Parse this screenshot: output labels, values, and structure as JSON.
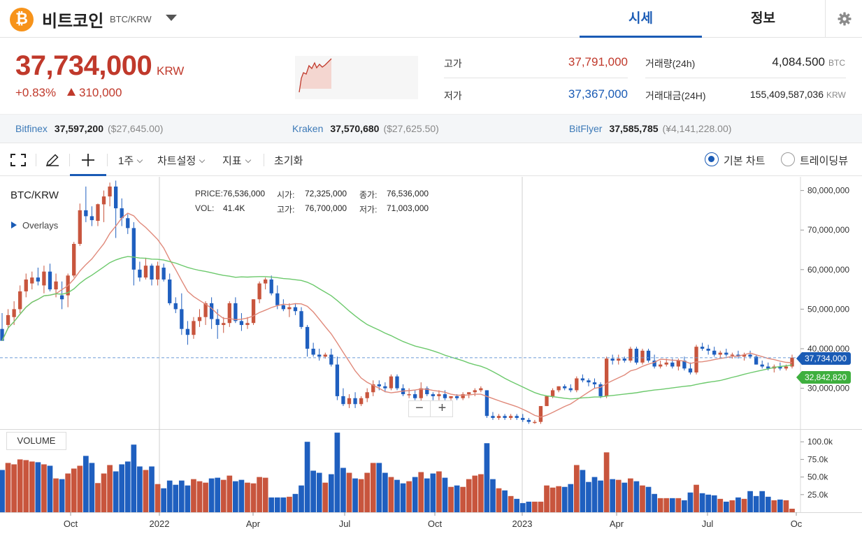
{
  "header": {
    "coin_symbol": "₿",
    "coin_name": "비트코인",
    "pair": "BTC/KRW",
    "tabs": [
      {
        "label": "시세",
        "active": true
      },
      {
        "label": "정보",
        "active": false
      }
    ],
    "settings_icon": "gear-icon"
  },
  "summary": {
    "price": "37,734,000",
    "price_unit": "KRW",
    "change_rate": "+0.83%",
    "change_amount": "310,000",
    "high_label": "고가",
    "high_value": "37,791,000",
    "low_label": "저가",
    "low_value": "37,367,000",
    "volume_label": "거래량(24h)",
    "volume_value": "4,084.500",
    "volume_unit": "BTC",
    "turnover_label": "거래대금(24H)",
    "turnover_value": "155,409,587,036",
    "turnover_unit": "KRW"
  },
  "exchanges": [
    {
      "name": "Bitfinex",
      "price": "37,597,200",
      "ref": "($27,645.00)"
    },
    {
      "name": "Kraken",
      "price": "37,570,680",
      "ref": "($27,625.50)"
    },
    {
      "name": "BitFlyer",
      "price": "37,585,785",
      "ref": "(¥4,141,228.00)"
    }
  ],
  "toolbar": {
    "fullscreen_icon": "fullscreen-icon",
    "pencil_icon": "pencil-icon",
    "crosshair_icon": "crosshair-icon",
    "interval": "1주",
    "settings": "차트설정",
    "indicators": "지표",
    "reset": "초기화",
    "chart_modes": [
      {
        "label": "기본 차트",
        "selected": true
      },
      {
        "label": "트레이딩뷰",
        "selected": false
      }
    ]
  },
  "chart_panel": {
    "pair_label": "BTC/KRW",
    "overlays_label": "Overlays",
    "ohlc": [
      {
        "k": "PRICE:",
        "v": "76,536,000"
      },
      {
        "k": "시가:",
        "v": "72,325,000"
      },
      {
        "k": "종가:",
        "v": "76,536,000"
      },
      {
        "k": "VOL:",
        "v": "41.4K"
      },
      {
        "k": "고가:",
        "v": "76,700,000"
      },
      {
        "k": "저가:",
        "v": "71,003,000"
      }
    ],
    "zoom_out": "−",
    "zoom_in": "+",
    "volume_label": "VOLUME",
    "current_price_tag": "37,734,000",
    "ma_tag": "32,842,820"
  },
  "chart_data": {
    "type": "candlestick",
    "interval": "1 week",
    "y_ticks": [
      30000000,
      40000000,
      50000000,
      60000000,
      70000000,
      80000000
    ],
    "y_tick_labels": [
      "30,000,000",
      "40,000,000",
      "50,000,000",
      "60,000,000",
      "70,000,000",
      "80,000,000"
    ],
    "volume_ticks": [
      "25.0k",
      "50.0k",
      "75.0k",
      "100.0k"
    ],
    "x_tick_labels": [
      "Oct",
      "2022",
      "Apr",
      "Jul",
      "Oct",
      "2023",
      "Apr",
      "Jul",
      "Oc"
    ],
    "colors": {
      "up": "#c8553d",
      "down": "#1f5fbf",
      "ma_fast": "#e0897a",
      "ma_slow": "#6cc96c"
    },
    "current_price": 37734000,
    "ma_slow_last": 32842820,
    "candles": [
      {
        "o": 45000000,
        "h": 49000000,
        "l": 42500000,
        "c": 42000000,
        "v": 60000
      },
      {
        "o": 46000000,
        "h": 50000000,
        "l": 45000000,
        "c": 48500000,
        "v": 70000
      },
      {
        "o": 48000000,
        "h": 52000000,
        "l": 46000000,
        "c": 50000000,
        "v": 68000
      },
      {
        "o": 50000000,
        "h": 56000000,
        "l": 49000000,
        "c": 54500000,
        "v": 75000
      },
      {
        "o": 54500000,
        "h": 59000000,
        "l": 53000000,
        "c": 57500000,
        "v": 74000
      },
      {
        "o": 56500000,
        "h": 59500000,
        "l": 55000000,
        "c": 58000000,
        "v": 72000
      },
      {
        "o": 58000000,
        "h": 60500000,
        "l": 56000000,
        "c": 57000000,
        "v": 71000
      },
      {
        "o": 56000000,
        "h": 61000000,
        "l": 54000000,
        "c": 59500000,
        "v": 68000
      },
      {
        "o": 59500000,
        "h": 61500000,
        "l": 54500000,
        "c": 55000000,
        "v": 66000
      },
      {
        "o": 55000000,
        "h": 59000000,
        "l": 53000000,
        "c": 57000000,
        "v": 48000
      },
      {
        "o": 53500000,
        "h": 57000000,
        "l": 50000000,
        "c": 52500000,
        "v": 47000
      },
      {
        "o": 53500000,
        "h": 59000000,
        "l": 50500000,
        "c": 58500000,
        "v": 55000
      },
      {
        "o": 58500000,
        "h": 67000000,
        "l": 58000000,
        "c": 66500000,
        "v": 62000
      },
      {
        "o": 66500000,
        "h": 76700000,
        "l": 66000000,
        "c": 75000000,
        "v": 66000
      },
      {
        "o": 75000000,
        "h": 81000000,
        "l": 72000000,
        "c": 73500000,
        "v": 80000
      },
      {
        "o": 73500000,
        "h": 76000000,
        "l": 71000000,
        "c": 72500000,
        "v": 70000
      },
      {
        "o": 72325000,
        "h": 76700000,
        "l": 71003000,
        "c": 76536000,
        "v": 41400
      },
      {
        "o": 76500000,
        "h": 80000000,
        "l": 72000000,
        "c": 78500000,
        "v": 55000
      },
      {
        "o": 78500000,
        "h": 82000000,
        "l": 76000000,
        "c": 81000000,
        "v": 67000
      },
      {
        "o": 81000000,
        "h": 82500000,
        "l": 68000000,
        "c": 75500000,
        "v": 58000
      },
      {
        "o": 75500000,
        "h": 78000000,
        "l": 71000000,
        "c": 73000000,
        "v": 68000
      },
      {
        "o": 73000000,
        "h": 74000000,
        "l": 69000000,
        "c": 70500000,
        "v": 72000
      },
      {
        "o": 70500000,
        "h": 72000000,
        "l": 56000000,
        "c": 60000000,
        "v": 96000
      },
      {
        "o": 60000000,
        "h": 62000000,
        "l": 57000000,
        "c": 58000000,
        "v": 65000
      },
      {
        "o": 58000000,
        "h": 63000000,
        "l": 57500000,
        "c": 61000000,
        "v": 60000
      },
      {
        "o": 61000000,
        "h": 61500000,
        "l": 56000000,
        "c": 57500000,
        "v": 65000
      },
      {
        "o": 57500000,
        "h": 62000000,
        "l": 56000000,
        "c": 61000000,
        "v": 40000
      },
      {
        "o": 60500000,
        "h": 61500000,
        "l": 57000000,
        "c": 57500000,
        "v": 34000
      },
      {
        "o": 57500000,
        "h": 59000000,
        "l": 51000000,
        "c": 51500000,
        "v": 45000
      },
      {
        "o": 51500000,
        "h": 53000000,
        "l": 49000000,
        "c": 50000000,
        "v": 39000
      },
      {
        "o": 50000000,
        "h": 54000000,
        "l": 43500000,
        "c": 45000000,
        "v": 45000
      },
      {
        "o": 45000000,
        "h": 47000000,
        "l": 41000000,
        "c": 43500000,
        "v": 38000
      },
      {
        "o": 43500000,
        "h": 48000000,
        "l": 42500000,
        "c": 47000000,
        "v": 47000
      },
      {
        "o": 47000000,
        "h": 50000000,
        "l": 45500000,
        "c": 48000000,
        "v": 44000
      },
      {
        "o": 48000000,
        "h": 52000000,
        "l": 46000000,
        "c": 51500000,
        "v": 42000
      },
      {
        "o": 51500000,
        "h": 53000000,
        "l": 45000000,
        "c": 47500000,
        "v": 48000
      },
      {
        "o": 47500000,
        "h": 50000000,
        "l": 42500000,
        "c": 46000000,
        "v": 49000
      },
      {
        "o": 46000000,
        "h": 48000000,
        "l": 44000000,
        "c": 46500000,
        "v": 46000
      },
      {
        "o": 46500000,
        "h": 52000000,
        "l": 45500000,
        "c": 51500000,
        "v": 52000
      },
      {
        "o": 51500000,
        "h": 53000000,
        "l": 46500000,
        "c": 47000000,
        "v": 44000
      },
      {
        "o": 47000000,
        "h": 49000000,
        "l": 44500000,
        "c": 46000000,
        "v": 46000
      },
      {
        "o": 46000000,
        "h": 48000000,
        "l": 45000000,
        "c": 46500000,
        "v": 42000
      },
      {
        "o": 46500000,
        "h": 52500000,
        "l": 46000000,
        "c": 52500000,
        "v": 41000
      },
      {
        "o": 52500000,
        "h": 57000000,
        "l": 51500000,
        "c": 56500000,
        "v": 50000
      },
      {
        "o": 56500000,
        "h": 58000000,
        "l": 55000000,
        "c": 57500000,
        "v": 49000
      },
      {
        "o": 57500000,
        "h": 58500000,
        "l": 53500000,
        "c": 54000000,
        "v": 21000
      },
      {
        "o": 54000000,
        "h": 56000000,
        "l": 50000000,
        "c": 51000000,
        "v": 21000
      },
      {
        "o": 51000000,
        "h": 52500000,
        "l": 49500000,
        "c": 50000000,
        "v": 21000
      },
      {
        "o": 50000000,
        "h": 51500000,
        "l": 48000000,
        "c": 50500000,
        "v": 22000
      },
      {
        "o": 50500000,
        "h": 51500000,
        "l": 48500000,
        "c": 49500000,
        "v": 26000
      },
      {
        "o": 49500000,
        "h": 50500000,
        "l": 45000000,
        "c": 45500000,
        "v": 38000
      },
      {
        "o": 45500000,
        "h": 46000000,
        "l": 38000000,
        "c": 40000000,
        "v": 100000
      },
      {
        "o": 40000000,
        "h": 41500000,
        "l": 38000000,
        "c": 38500000,
        "v": 59000
      },
      {
        "o": 38500000,
        "h": 40000000,
        "l": 37000000,
        "c": 38000000,
        "v": 56000
      },
      {
        "o": 38000000,
        "h": 39000000,
        "l": 37500000,
        "c": 38500000,
        "v": 42000
      },
      {
        "o": 38500000,
        "h": 40000000,
        "l": 35500000,
        "c": 36000000,
        "v": 54000
      },
      {
        "o": 36000000,
        "h": 38000000,
        "l": 27000000,
        "c": 28000000,
        "v": 113000
      },
      {
        "o": 28000000,
        "h": 30000000,
        "l": 25500000,
        "c": 26000000,
        "v": 63000
      },
      {
        "o": 26000000,
        "h": 28500000,
        "l": 25000000,
        "c": 27500000,
        "v": 56000
      },
      {
        "o": 27500000,
        "h": 29000000,
        "l": 25000000,
        "c": 26000000,
        "v": 48000
      },
      {
        "o": 26000000,
        "h": 28000000,
        "l": 25500000,
        "c": 27500000,
        "v": 47000
      },
      {
        "o": 27500000,
        "h": 30000000,
        "l": 26500000,
        "c": 29000000,
        "v": 56000
      },
      {
        "o": 29000000,
        "h": 32000000,
        "l": 28000000,
        "c": 31000000,
        "v": 70000
      },
      {
        "o": 31000000,
        "h": 32000000,
        "l": 29500000,
        "c": 30500000,
        "v": 70000
      },
      {
        "o": 30500000,
        "h": 31500000,
        "l": 29000000,
        "c": 30000000,
        "v": 56000
      },
      {
        "o": 30000000,
        "h": 33500000,
        "l": 29500000,
        "c": 33000000,
        "v": 50000
      },
      {
        "o": 33000000,
        "h": 33500000,
        "l": 29500000,
        "c": 30000000,
        "v": 46000
      },
      {
        "o": 30000000,
        "h": 31000000,
        "l": 28000000,
        "c": 28500000,
        "v": 41000
      },
      {
        "o": 28500000,
        "h": 30000000,
        "l": 27500000,
        "c": 28500000,
        "v": 44000
      },
      {
        "o": 28500000,
        "h": 29500000,
        "l": 27000000,
        "c": 27500000,
        "v": 50000
      },
      {
        "o": 27500000,
        "h": 31500000,
        "l": 26000000,
        "c": 30000000,
        "v": 57000
      },
      {
        "o": 30000000,
        "h": 30500000,
        "l": 28000000,
        "c": 28500000,
        "v": 48000
      },
      {
        "o": 28500000,
        "h": 29000000,
        "l": 27000000,
        "c": 28000000,
        "v": 55000
      },
      {
        "o": 28000000,
        "h": 29500000,
        "l": 27000000,
        "c": 28500000,
        "v": 58000
      },
      {
        "o": 28500000,
        "h": 29500000,
        "l": 27000000,
        "c": 27500000,
        "v": 49000
      },
      {
        "o": 27500000,
        "h": 28000000,
        "l": 27000000,
        "c": 28000000,
        "v": 36000
      },
      {
        "o": 28000000,
        "h": 28500000,
        "l": 27000000,
        "c": 27500000,
        "v": 38000
      },
      {
        "o": 27500000,
        "h": 29000000,
        "l": 27000000,
        "c": 28500000,
        "v": 36000
      },
      {
        "o": 28500000,
        "h": 29000000,
        "l": 27500000,
        "c": 29000000,
        "v": 47000
      },
      {
        "o": 29000000,
        "h": 30000000,
        "l": 28000000,
        "c": 29500000,
        "v": 52000
      },
      {
        "o": 29500000,
        "h": 30500000,
        "l": 29000000,
        "c": 30000000,
        "v": 54000
      },
      {
        "o": 29500000,
        "h": 29500000,
        "l": 22500000,
        "c": 23000000,
        "v": 98000
      },
      {
        "o": 23000000,
        "h": 24000000,
        "l": 22000000,
        "c": 22500000,
        "v": 47000
      },
      {
        "o": 22500000,
        "h": 23500000,
        "l": 22000000,
        "c": 23000000,
        "v": 34000
      },
      {
        "o": 23000000,
        "h": 23500000,
        "l": 22000000,
        "c": 22500000,
        "v": 31000
      },
      {
        "o": 22500000,
        "h": 23500000,
        "l": 22000000,
        "c": 23000000,
        "v": 23000
      },
      {
        "o": 23000000,
        "h": 23500000,
        "l": 22000000,
        "c": 22500000,
        "v": 19000
      },
      {
        "o": 22500000,
        "h": 23500000,
        "l": 21500000,
        "c": 22000000,
        "v": 13000
      },
      {
        "o": 22000000,
        "h": 22500000,
        "l": 21000000,
        "c": 21500000,
        "v": 15000
      },
      {
        "o": 21500000,
        "h": 22000000,
        "l": 21000000,
        "c": 21500000,
        "v": 15000
      },
      {
        "o": 21500000,
        "h": 25500000,
        "l": 21000000,
        "c": 25500000,
        "v": 15000
      },
      {
        "o": 25500000,
        "h": 28000000,
        "l": 25500000,
        "c": 28000000,
        "v": 38000
      },
      {
        "o": 28000000,
        "h": 30000000,
        "l": 27500000,
        "c": 29500000,
        "v": 35000
      },
      {
        "o": 29500000,
        "h": 30500000,
        "l": 29000000,
        "c": 30500000,
        "v": 37000
      },
      {
        "o": 30500000,
        "h": 31000000,
        "l": 29500000,
        "c": 30000000,
        "v": 36000
      },
      {
        "o": 30000000,
        "h": 31000000,
        "l": 29000000,
        "c": 29500000,
        "v": 40000
      },
      {
        "o": 29500000,
        "h": 33000000,
        "l": 29000000,
        "c": 32500000,
        "v": 67000
      },
      {
        "o": 32500000,
        "h": 33500000,
        "l": 31500000,
        "c": 32000000,
        "v": 60000
      },
      {
        "o": 32000000,
        "h": 32500000,
        "l": 30500000,
        "c": 31500000,
        "v": 43000
      },
      {
        "o": 31500000,
        "h": 32500000,
        "l": 30000000,
        "c": 31000000,
        "v": 50000
      },
      {
        "o": 31000000,
        "h": 31500000,
        "l": 27500000,
        "c": 28000000,
        "v": 45000
      },
      {
        "o": 28000000,
        "h": 38000000,
        "l": 27500000,
        "c": 37500000,
        "v": 85000
      },
      {
        "o": 37500000,
        "h": 38500000,
        "l": 36000000,
        "c": 37000000,
        "v": 47000
      },
      {
        "o": 37000000,
        "h": 38500000,
        "l": 36000000,
        "c": 37500000,
        "v": 46000
      },
      {
        "o": 37500000,
        "h": 38000000,
        "l": 36500000,
        "c": 37000000,
        "v": 42000
      },
      {
        "o": 37000000,
        "h": 40500000,
        "l": 36500000,
        "c": 40000000,
        "v": 48000
      },
      {
        "o": 40000000,
        "h": 40500000,
        "l": 36000000,
        "c": 36500000,
        "v": 44000
      },
      {
        "o": 36500000,
        "h": 40000000,
        "l": 36000000,
        "c": 39500000,
        "v": 38000
      },
      {
        "o": 39500000,
        "h": 40000000,
        "l": 36500000,
        "c": 37000000,
        "v": 36000
      },
      {
        "o": 37000000,
        "h": 38500000,
        "l": 35000000,
        "c": 35500000,
        "v": 26000
      },
      {
        "o": 35500000,
        "h": 37000000,
        "l": 35000000,
        "c": 36000000,
        "v": 20000
      },
      {
        "o": 36000000,
        "h": 37500000,
        "l": 35500000,
        "c": 36500000,
        "v": 20000
      },
      {
        "o": 36500000,
        "h": 37500000,
        "l": 35000000,
        "c": 35500000,
        "v": 20000
      },
      {
        "o": 35500000,
        "h": 37500000,
        "l": 34500000,
        "c": 37000000,
        "v": 20000
      },
      {
        "o": 37000000,
        "h": 38000000,
        "l": 34500000,
        "c": 35000000,
        "v": 17000
      },
      {
        "o": 35000000,
        "h": 36500000,
        "l": 33500000,
        "c": 34000000,
        "v": 28000
      },
      {
        "o": 34000000,
        "h": 41000000,
        "l": 33500000,
        "c": 40500000,
        "v": 39000
      },
      {
        "o": 40500000,
        "h": 41500000,
        "l": 39500000,
        "c": 40000000,
        "v": 27000
      },
      {
        "o": 40000000,
        "h": 41000000,
        "l": 38500000,
        "c": 39500000,
        "v": 25000
      },
      {
        "o": 39500000,
        "h": 40500000,
        "l": 38000000,
        "c": 38500000,
        "v": 24000
      },
      {
        "o": 38500000,
        "h": 39500000,
        "l": 37500000,
        "c": 39000000,
        "v": 19000
      },
      {
        "o": 39000000,
        "h": 40000000,
        "l": 38000000,
        "c": 38500000,
        "v": 15000
      },
      {
        "o": 38500000,
        "h": 39000000,
        "l": 37500000,
        "c": 38500000,
        "v": 17000
      },
      {
        "o": 38500000,
        "h": 39500000,
        "l": 37500000,
        "c": 38000000,
        "v": 21000
      },
      {
        "o": 38000000,
        "h": 39000000,
        "l": 37000000,
        "c": 38500000,
        "v": 19000
      },
      {
        "o": 38500000,
        "h": 39500000,
        "l": 37500000,
        "c": 38000000,
        "v": 30000
      },
      {
        "o": 38000000,
        "h": 38500000,
        "l": 36000000,
        "c": 36000000,
        "v": 23000
      },
      {
        "o": 36000000,
        "h": 37000000,
        "l": 35000000,
        "c": 35500000,
        "v": 30000
      },
      {
        "o": 35500000,
        "h": 36500000,
        "l": 34500000,
        "c": 35000000,
        "v": 22000
      },
      {
        "o": 35000000,
        "h": 36000000,
        "l": 34000000,
        "c": 35500000,
        "v": 17000
      },
      {
        "o": 35500000,
        "h": 36500000,
        "l": 34500000,
        "c": 35000000,
        "v": 18000
      },
      {
        "o": 35000000,
        "h": 36000000,
        "l": 34500000,
        "c": 35500000,
        "v": 17000
      },
      {
        "o": 35500000,
        "h": 38500000,
        "l": 35000000,
        "c": 37734000,
        "v": 5000
      }
    ]
  }
}
